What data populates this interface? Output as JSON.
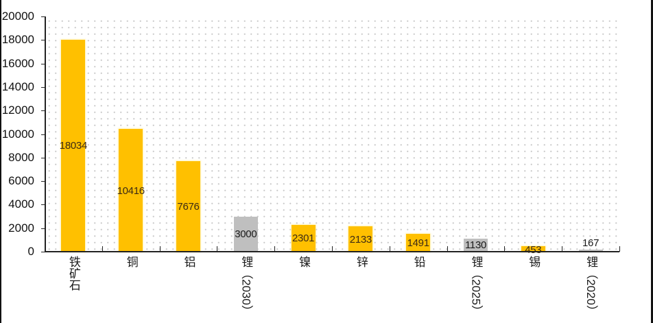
{
  "chart_data": {
    "type": "bar",
    "title": "",
    "xlabel": "",
    "ylabel": "",
    "ylim": [
      0,
      20000
    ],
    "yticks": [
      0,
      2000,
      4000,
      6000,
      8000,
      10000,
      12000,
      14000,
      16000,
      18000,
      20000
    ],
    "grid": "dotted background",
    "legend": null,
    "categories": [
      "铁矿石",
      "铜",
      "铝",
      "锂（2030）",
      "镍",
      "锌",
      "铅",
      "锂（2025）",
      "锡",
      "锂（2020）"
    ],
    "values": [
      18034,
      10416,
      7676,
      3000,
      2301,
      2133,
      1491,
      1130,
      453,
      167
    ],
    "bar_colors": [
      "#FFC000",
      "#FFC000",
      "#FFC000",
      "#BFBFBF",
      "#FFC000",
      "#FFC000",
      "#FFC000",
      "#BFBFBF",
      "#FFC000",
      "#BFBFBF"
    ],
    "data_labels": [
      "18034",
      "10416",
      "7676",
      "3000",
      "2301",
      "2133",
      "1491",
      "1130",
      "453",
      "167"
    ]
  },
  "colors": {
    "gold": "#FFC000",
    "gray": "#BFBFBF",
    "axis": "#222222"
  }
}
